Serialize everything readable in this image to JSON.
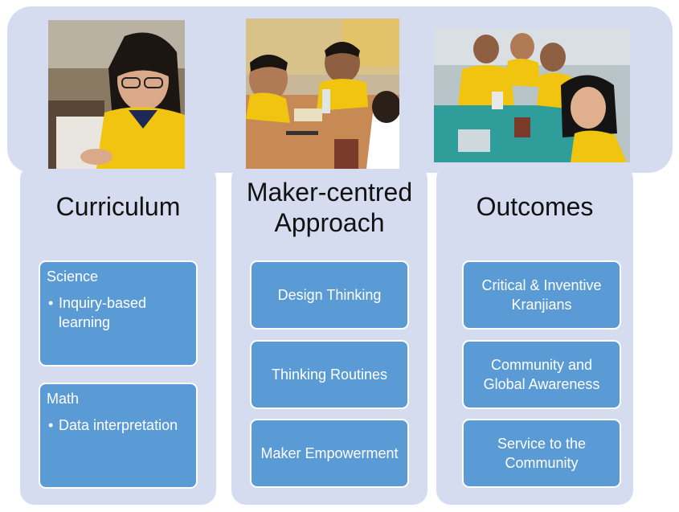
{
  "photos": [
    {
      "alt_icon": "student-writing-photo"
    },
    {
      "alt_icon": "students-making-photo"
    },
    {
      "alt_icon": "students-group-photo"
    }
  ],
  "columns": [
    {
      "title": "Curriculum",
      "boxes": [
        {
          "heading": "Science",
          "bullet": "Inquiry-based learning"
        },
        {
          "heading": "Math",
          "bullet": "Data interpretation"
        }
      ]
    },
    {
      "title": "Maker-centred Approach",
      "boxes": [
        {
          "text": "Design Thinking"
        },
        {
          "text": "Thinking Routines"
        },
        {
          "text": "Maker Empowerment"
        }
      ]
    },
    {
      "title": "Outcomes",
      "boxes": [
        {
          "text": "Critical & Inventive Kranjians"
        },
        {
          "text": "Community and Global Awareness"
        },
        {
          "text": "Service to the Community"
        }
      ]
    }
  ],
  "colors": {
    "panel": "#d6dcef",
    "box": "#5b9bd5",
    "box_text": "#ffffff"
  }
}
